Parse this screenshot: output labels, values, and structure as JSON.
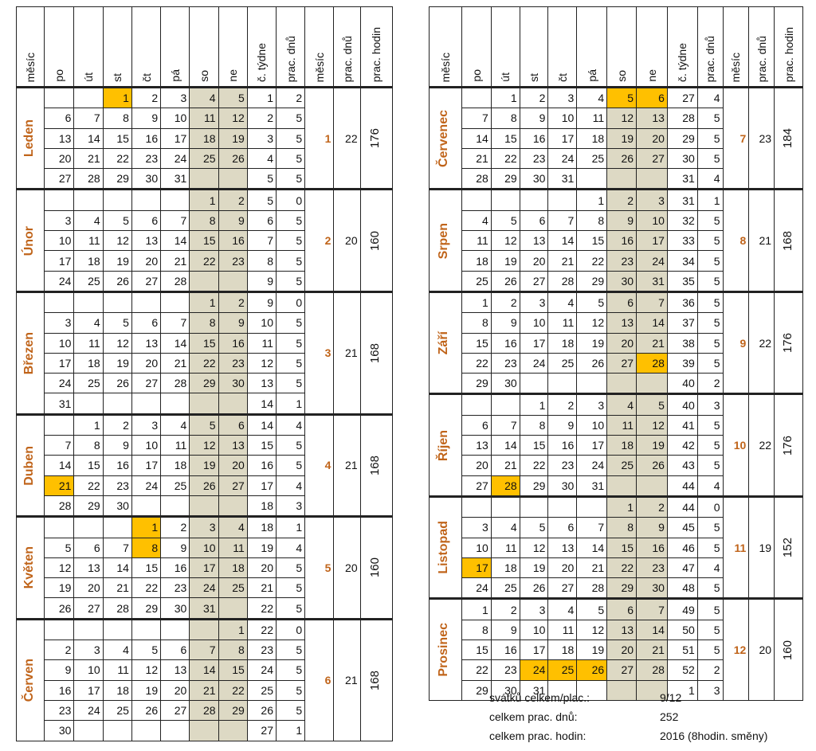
{
  "headers": [
    "měsíc",
    "po",
    "út",
    "st",
    "čt",
    "pá",
    "so",
    "ne",
    "č. týdne",
    "prac. dnů",
    "měsíc",
    "prac. dnů",
    "prac. hodin"
  ],
  "months": [
    {
      "name": "Leden",
      "num": "1",
      "days": "22",
      "hours": "176",
      "weeks": [
        {
          "d": [
            "",
            "",
            "1",
            "2",
            "3",
            "4",
            "5"
          ],
          "w": "1",
          "p": "2",
          "hol": [
            2
          ]
        },
        {
          "d": [
            "6",
            "7",
            "8",
            "9",
            "10",
            "11",
            "12"
          ],
          "w": "2",
          "p": "5"
        },
        {
          "d": [
            "13",
            "14",
            "15",
            "16",
            "17",
            "18",
            "19"
          ],
          "w": "3",
          "p": "5"
        },
        {
          "d": [
            "20",
            "21",
            "22",
            "23",
            "24",
            "25",
            "26"
          ],
          "w": "4",
          "p": "5"
        },
        {
          "d": [
            "27",
            "28",
            "29",
            "30",
            "31",
            "",
            ""
          ],
          "w": "5",
          "p": "5"
        }
      ]
    },
    {
      "name": "Únor",
      "num": "2",
      "days": "20",
      "hours": "160",
      "weeks": [
        {
          "d": [
            "",
            "",
            "",
            "",
            "",
            "1",
            "2"
          ],
          "w": "5",
          "p": "0"
        },
        {
          "d": [
            "3",
            "4",
            "5",
            "6",
            "7",
            "8",
            "9"
          ],
          "w": "6",
          "p": "5"
        },
        {
          "d": [
            "10",
            "11",
            "12",
            "13",
            "14",
            "15",
            "16"
          ],
          "w": "7",
          "p": "5"
        },
        {
          "d": [
            "17",
            "18",
            "19",
            "20",
            "21",
            "22",
            "23"
          ],
          "w": "8",
          "p": "5"
        },
        {
          "d": [
            "24",
            "25",
            "26",
            "27",
            "28",
            "",
            ""
          ],
          "w": "9",
          "p": "5"
        }
      ]
    },
    {
      "name": "Březen",
      "num": "3",
      "days": "21",
      "hours": "168",
      "weeks": [
        {
          "d": [
            "",
            "",
            "",
            "",
            "",
            "1",
            "2"
          ],
          "w": "9",
          "p": "0"
        },
        {
          "d": [
            "3",
            "4",
            "5",
            "6",
            "7",
            "8",
            "9"
          ],
          "w": "10",
          "p": "5"
        },
        {
          "d": [
            "10",
            "11",
            "12",
            "13",
            "14",
            "15",
            "16"
          ],
          "w": "11",
          "p": "5"
        },
        {
          "d": [
            "17",
            "18",
            "19",
            "20",
            "21",
            "22",
            "23"
          ],
          "w": "12",
          "p": "5"
        },
        {
          "d": [
            "24",
            "25",
            "26",
            "27",
            "28",
            "29",
            "30"
          ],
          "w": "13",
          "p": "5"
        },
        {
          "d": [
            "31",
            "",
            "",
            "",
            "",
            "",
            ""
          ],
          "w": "14",
          "p": "1"
        }
      ]
    },
    {
      "name": "Duben",
      "num": "4",
      "days": "21",
      "hours": "168",
      "weeks": [
        {
          "d": [
            "",
            "1",
            "2",
            "3",
            "4",
            "5",
            "6"
          ],
          "w": "14",
          "p": "4"
        },
        {
          "d": [
            "7",
            "8",
            "9",
            "10",
            "11",
            "12",
            "13"
          ],
          "w": "15",
          "p": "5"
        },
        {
          "d": [
            "14",
            "15",
            "16",
            "17",
            "18",
            "19",
            "20"
          ],
          "w": "16",
          "p": "5"
        },
        {
          "d": [
            "21",
            "22",
            "23",
            "24",
            "25",
            "26",
            "27"
          ],
          "w": "17",
          "p": "4",
          "hol": [
            0
          ]
        },
        {
          "d": [
            "28",
            "29",
            "30",
            "",
            "",
            "",
            ""
          ],
          "w": "18",
          "p": "3"
        }
      ]
    },
    {
      "name": "Květen",
      "num": "5",
      "days": "20",
      "hours": "160",
      "weeks": [
        {
          "d": [
            "",
            "",
            "",
            "1",
            "2",
            "3",
            "4"
          ],
          "w": "18",
          "p": "1",
          "hol": [
            3
          ]
        },
        {
          "d": [
            "5",
            "6",
            "7",
            "8",
            "9",
            "10",
            "11"
          ],
          "w": "19",
          "p": "4",
          "hol": [
            3
          ]
        },
        {
          "d": [
            "12",
            "13",
            "14",
            "15",
            "16",
            "17",
            "18"
          ],
          "w": "20",
          "p": "5"
        },
        {
          "d": [
            "19",
            "20",
            "21",
            "22",
            "23",
            "24",
            "25"
          ],
          "w": "21",
          "p": "5"
        },
        {
          "d": [
            "26",
            "27",
            "28",
            "29",
            "30",
            "31",
            ""
          ],
          "w": "22",
          "p": "5"
        }
      ]
    },
    {
      "name": "Červen",
      "num": "6",
      "days": "21",
      "hours": "168",
      "weeks": [
        {
          "d": [
            "",
            "",
            "",
            "",
            "",
            "",
            "1"
          ],
          "w": "22",
          "p": "0"
        },
        {
          "d": [
            "2",
            "3",
            "4",
            "5",
            "6",
            "7",
            "8"
          ],
          "w": "23",
          "p": "5"
        },
        {
          "d": [
            "9",
            "10",
            "11",
            "12",
            "13",
            "14",
            "15"
          ],
          "w": "24",
          "p": "5"
        },
        {
          "d": [
            "16",
            "17",
            "18",
            "19",
            "20",
            "21",
            "22"
          ],
          "w": "25",
          "p": "5"
        },
        {
          "d": [
            "23",
            "24",
            "25",
            "26",
            "27",
            "28",
            "29"
          ],
          "w": "26",
          "p": "5"
        },
        {
          "d": [
            "30",
            "",
            "",
            "",
            "",
            "",
            ""
          ],
          "w": "27",
          "p": "1"
        }
      ]
    },
    {
      "name": "Červenec",
      "num": "7",
      "days": "23",
      "hours": "184",
      "weeks": [
        {
          "d": [
            "",
            "1",
            "2",
            "3",
            "4",
            "5",
            "6"
          ],
          "w": "27",
          "p": "4",
          "hol": [
            5,
            6
          ]
        },
        {
          "d": [
            "7",
            "8",
            "9",
            "10",
            "11",
            "12",
            "13"
          ],
          "w": "28",
          "p": "5"
        },
        {
          "d": [
            "14",
            "15",
            "16",
            "17",
            "18",
            "19",
            "20"
          ],
          "w": "29",
          "p": "5"
        },
        {
          "d": [
            "21",
            "22",
            "23",
            "24",
            "25",
            "26",
            "27"
          ],
          "w": "30",
          "p": "5"
        },
        {
          "d": [
            "28",
            "29",
            "30",
            "31",
            "",
            "",
            ""
          ],
          "w": "31",
          "p": "4"
        }
      ]
    },
    {
      "name": "Srpen",
      "num": "8",
      "days": "21",
      "hours": "168",
      "weeks": [
        {
          "d": [
            "",
            "",
            "",
            "",
            "1",
            "2",
            "3"
          ],
          "w": "31",
          "p": "1"
        },
        {
          "d": [
            "4",
            "5",
            "6",
            "7",
            "8",
            "9",
            "10"
          ],
          "w": "32",
          "p": "5"
        },
        {
          "d": [
            "11",
            "12",
            "13",
            "14",
            "15",
            "16",
            "17"
          ],
          "w": "33",
          "p": "5"
        },
        {
          "d": [
            "18",
            "19",
            "20",
            "21",
            "22",
            "23",
            "24"
          ],
          "w": "34",
          "p": "5"
        },
        {
          "d": [
            "25",
            "26",
            "27",
            "28",
            "29",
            "30",
            "31"
          ],
          "w": "35",
          "p": "5"
        }
      ]
    },
    {
      "name": "Září",
      "num": "9",
      "days": "22",
      "hours": "176",
      "weeks": [
        {
          "d": [
            "1",
            "2",
            "3",
            "4",
            "5",
            "6",
            "7"
          ],
          "w": "36",
          "p": "5"
        },
        {
          "d": [
            "8",
            "9",
            "10",
            "11",
            "12",
            "13",
            "14"
          ],
          "w": "37",
          "p": "5"
        },
        {
          "d": [
            "15",
            "16",
            "17",
            "18",
            "19",
            "20",
            "21"
          ],
          "w": "38",
          "p": "5"
        },
        {
          "d": [
            "22",
            "23",
            "24",
            "25",
            "26",
            "27",
            "28"
          ],
          "w": "39",
          "p": "5",
          "hol": [
            6
          ]
        },
        {
          "d": [
            "29",
            "30",
            "",
            "",
            "",
            "",
            ""
          ],
          "w": "40",
          "p": "2"
        }
      ]
    },
    {
      "name": "Říjen",
      "num": "10",
      "days": "22",
      "hours": "176",
      "weeks": [
        {
          "d": [
            "",
            "",
            "1",
            "2",
            "3",
            "4",
            "5"
          ],
          "w": "40",
          "p": "3"
        },
        {
          "d": [
            "6",
            "7",
            "8",
            "9",
            "10",
            "11",
            "12"
          ],
          "w": "41",
          "p": "5"
        },
        {
          "d": [
            "13",
            "14",
            "15",
            "16",
            "17",
            "18",
            "19"
          ],
          "w": "42",
          "p": "5"
        },
        {
          "d": [
            "20",
            "21",
            "22",
            "23",
            "24",
            "25",
            "26"
          ],
          "w": "43",
          "p": "5"
        },
        {
          "d": [
            "27",
            "28",
            "29",
            "30",
            "31",
            "",
            ""
          ],
          "w": "44",
          "p": "4",
          "hol": [
            1
          ]
        }
      ]
    },
    {
      "name": "Listopad",
      "num": "11",
      "days": "19",
      "hours": "152",
      "weeks": [
        {
          "d": [
            "",
            "",
            "",
            "",
            "",
            "1",
            "2"
          ],
          "w": "44",
          "p": "0"
        },
        {
          "d": [
            "3",
            "4",
            "5",
            "6",
            "7",
            "8",
            "9"
          ],
          "w": "45",
          "p": "5"
        },
        {
          "d": [
            "10",
            "11",
            "12",
            "13",
            "14",
            "15",
            "16"
          ],
          "w": "46",
          "p": "5"
        },
        {
          "d": [
            "17",
            "18",
            "19",
            "20",
            "21",
            "22",
            "23"
          ],
          "w": "47",
          "p": "4",
          "hol": [
            0
          ]
        },
        {
          "d": [
            "24",
            "25",
            "26",
            "27",
            "28",
            "29",
            "30"
          ],
          "w": "48",
          "p": "5"
        }
      ]
    },
    {
      "name": "Prosinec",
      "num": "12",
      "days": "20",
      "hours": "160",
      "weeks": [
        {
          "d": [
            "1",
            "2",
            "3",
            "4",
            "5",
            "6",
            "7"
          ],
          "w": "49",
          "p": "5"
        },
        {
          "d": [
            "8",
            "9",
            "10",
            "11",
            "12",
            "13",
            "14"
          ],
          "w": "50",
          "p": "5"
        },
        {
          "d": [
            "15",
            "16",
            "17",
            "18",
            "19",
            "20",
            "21"
          ],
          "w": "51",
          "p": "5"
        },
        {
          "d": [
            "22",
            "23",
            "24",
            "25",
            "26",
            "27",
            "28"
          ],
          "w": "52",
          "p": "2",
          "hol": [
            2,
            3,
            4
          ]
        },
        {
          "d": [
            "29",
            "30",
            "31",
            "",
            "",
            "",
            ""
          ],
          "w": "1",
          "p": "3"
        }
      ]
    }
  ],
  "summary": {
    "holidays_label": "svátků celkem/plac.:",
    "holidays_value": "9/12",
    "days_label": "celkem prac. dnů:",
    "days_value": "252",
    "hours_label": "celkem prac. hodin:",
    "hours_value": "2016  (8hodin. směny)"
  },
  "colors": {
    "weekend": "#ddd9c4",
    "holiday": "#ffc000",
    "month_text": "#c0641a"
  }
}
